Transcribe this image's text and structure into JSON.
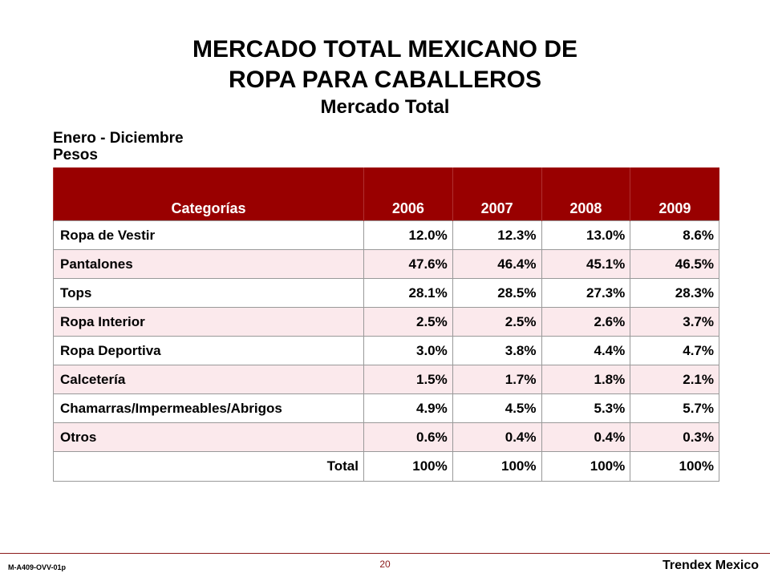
{
  "title_line1": "MERCADO TOTAL MEXICANO DE",
  "title_line2": "ROPA PARA CABALLEROS",
  "subtitle": "Mercado Total",
  "period_line1": "Enero - Diciembre",
  "period_line2": "Pesos",
  "table": {
    "headers": [
      "Categorías",
      "2006",
      "2007",
      "2008",
      "2009"
    ],
    "rows": [
      {
        "label": "Ropa de Vestir",
        "values": [
          "12.0%",
          "12.3%",
          "13.0%",
          "8.6%"
        ]
      },
      {
        "label": "Pantalones",
        "values": [
          "47.6%",
          "46.4%",
          "45.1%",
          "46.5%"
        ]
      },
      {
        "label": "Tops",
        "values": [
          "28.1%",
          "28.5%",
          "27.3%",
          "28.3%"
        ]
      },
      {
        "label": "Ropa Interior",
        "values": [
          "2.5%",
          "2.5%",
          "2.6%",
          "3.7%"
        ]
      },
      {
        "label": "Ropa Deportiva",
        "values": [
          "3.0%",
          "3.8%",
          "4.4%",
          "4.7%"
        ]
      },
      {
        "label": "Calcetería",
        "values": [
          "1.5%",
          "1.7%",
          "1.8%",
          "2.1%"
        ]
      },
      {
        "label": "Chamarras/Impermeables/Abrigos",
        "values": [
          "4.9%",
          "4.5%",
          "5.3%",
          "5.7%"
        ]
      },
      {
        "label": "Otros",
        "values": [
          "0.6%",
          "0.4%",
          "0.4%",
          "0.3%"
        ]
      }
    ],
    "total": {
      "label": "Total",
      "values": [
        "100%",
        "100%",
        "100%",
        "100%"
      ]
    }
  },
  "colors": {
    "header_bg": "#990000",
    "alt_row_bg": "#fbe9ec",
    "footer_line": "#8b1a1a"
  },
  "footer": {
    "page_number": "20",
    "doc_code": "M-A409-OVV-01p",
    "brand": "Trendex Mexico"
  }
}
